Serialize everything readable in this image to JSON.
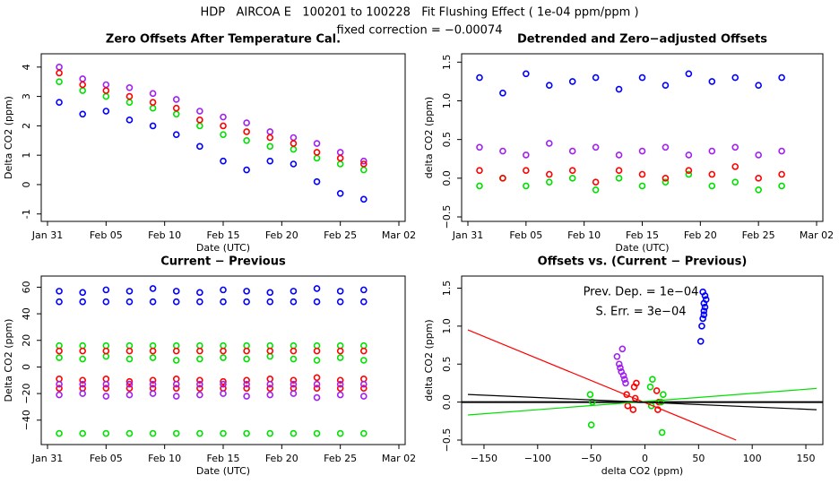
{
  "title": "HDP   AIRCOA E   100201 to 100228   Fit Flushing Effect ( 1e-04 ppm/ppm )",
  "subtitle": "fixed correction = −0.00074",
  "chart_data": [
    {
      "type": "date-scatter",
      "title": "Zero Offsets After Temperature Cal.",
      "xlabel": "Date (UTC)",
      "ylabel": "Delta CO2 (ppm)",
      "x": [
        "Feb 01",
        "Feb 03",
        "Feb 05",
        "Feb 07",
        "Feb 09",
        "Feb 11",
        "Feb 13",
        "Feb 15",
        "Feb 17",
        "Feb 19",
        "Feb 21",
        "Feb 23",
        "Feb 25",
        "Feb 27"
      ],
      "xlim": [
        "Jan 31",
        "Mar 02"
      ],
      "xticks": [
        "Jan 31",
        "Feb 05",
        "Feb 10",
        "Feb 15",
        "Feb 20",
        "Feb 25",
        "Mar 02"
      ],
      "ylim": [
        -1.1,
        4.3
      ],
      "yticks": [
        -1,
        0,
        1,
        2,
        3,
        4
      ],
      "series": [
        {
          "color": "#a020f0",
          "values": [
            4.0,
            3.6,
            3.4,
            3.3,
            3.1,
            2.9,
            2.5,
            2.3,
            2.1,
            1.8,
            1.6,
            1.4,
            1.1,
            0.8
          ]
        },
        {
          "color": "#00e000",
          "values": [
            3.5,
            3.2,
            3.0,
            2.8,
            2.6,
            2.4,
            2.0,
            1.7,
            1.5,
            1.3,
            1.2,
            0.9,
            0.7,
            0.5
          ]
        },
        {
          "color": "#ff0000",
          "values": [
            3.8,
            3.4,
            3.2,
            3.0,
            2.8,
            2.6,
            2.2,
            2.0,
            1.8,
            1.6,
            1.4,
            1.1,
            0.9,
            0.7
          ]
        },
        {
          "color": "#0000ff",
          "values": [
            2.8,
            2.4,
            2.5,
            2.2,
            2.0,
            1.7,
            1.3,
            0.8,
            0.5,
            0.8,
            0.7,
            0.1,
            -0.3,
            -0.5
          ]
        }
      ]
    },
    {
      "type": "date-scatter",
      "title": "Detrended and Zero−adjusted Offsets",
      "xlabel": "Date (UTC)",
      "ylabel": "delta CO2 (ppm)",
      "x": [
        "Feb 01",
        "Feb 03",
        "Feb 05",
        "Feb 07",
        "Feb 09",
        "Feb 11",
        "Feb 13",
        "Feb 15",
        "Feb 17",
        "Feb 19",
        "Feb 21",
        "Feb 23",
        "Feb 25",
        "Feb 27"
      ],
      "xlim": [
        "Jan 31",
        "Mar 02"
      ],
      "xticks": [
        "Jan 31",
        "Feb 05",
        "Feb 10",
        "Feb 15",
        "Feb 20",
        "Feb 25",
        "Mar 02"
      ],
      "ylim": [
        -0.5,
        1.55
      ],
      "yticks": [
        {
          "value": -0.5,
          "label": "−0.5"
        },
        {
          "value": 0,
          "label": "0.0"
        },
        0.5,
        {
          "value": 1,
          "label": "1.0"
        },
        1.5
      ],
      "series": [
        {
          "color": "#0000ff",
          "values": [
            1.3,
            1.1,
            1.35,
            1.2,
            1.25,
            1.3,
            1.15,
            1.3,
            1.2,
            1.35,
            1.25,
            1.3,
            1.2,
            1.3
          ]
        },
        {
          "color": "#a020f0",
          "values": [
            0.4,
            0.35,
            0.3,
            0.45,
            0.35,
            0.4,
            0.3,
            0.35,
            0.4,
            0.3,
            0.35,
            0.4,
            0.3,
            0.35
          ]
        },
        {
          "color": "#00e000",
          "values": [
            -0.1,
            0.0,
            -0.1,
            -0.05,
            0.0,
            -0.15,
            0.0,
            -0.1,
            -0.05,
            0.05,
            -0.1,
            -0.05,
            -0.15,
            -0.1
          ]
        },
        {
          "color": "#ff0000",
          "values": [
            0.1,
            0.0,
            0.1,
            0.05,
            0.1,
            -0.05,
            0.1,
            0.05,
            0.0,
            0.1,
            0.05,
            0.15,
            0.0,
            0.05
          ]
        }
      ]
    },
    {
      "type": "date-scatter",
      "title": "Current − Previous",
      "xlabel": "Date (UTC)",
      "ylabel": "Delta CO2 (ppm)",
      "x": [
        "Feb 01",
        "Feb 03",
        "Feb 05",
        "Feb 07",
        "Feb 09",
        "Feb 11",
        "Feb 13",
        "Feb 15",
        "Feb 17",
        "Feb 19",
        "Feb 21",
        "Feb 23",
        "Feb 25",
        "Feb 27"
      ],
      "xlim": [
        "Jan 31",
        "Mar 02"
      ],
      "xticks": [
        "Jan 31",
        "Feb 05",
        "Feb 10",
        "Feb 15",
        "Feb 20",
        "Feb 25",
        "Mar 02"
      ],
      "ylim": [
        -55,
        65
      ],
      "yticks": [
        {
          "value": -40,
          "label": "−40"
        },
        {
          "value": -20,
          "label": "−20"
        },
        0,
        20,
        40,
        60
      ],
      "series": [
        {
          "color": "#0000ff",
          "values": [
            57,
            56,
            58,
            57,
            59,
            57,
            56,
            58,
            57,
            56,
            57,
            59,
            57,
            58
          ]
        },
        {
          "color": "#0000ff",
          "values": [
            49,
            49,
            49,
            49,
            49,
            49,
            49,
            49,
            49,
            49,
            49,
            49,
            49,
            49
          ]
        },
        {
          "color": "#00e000",
          "values": [
            16,
            16,
            16,
            16,
            16,
            16,
            16,
            16,
            16,
            16,
            16,
            16,
            16,
            16
          ]
        },
        {
          "color": "#00e000",
          "values": [
            7,
            6,
            8,
            6,
            7,
            5,
            6,
            7,
            6,
            8,
            6,
            5,
            7,
            5
          ]
        },
        {
          "color": "#ff0000",
          "values": [
            12,
            12,
            12,
            12,
            12,
            12,
            12,
            12,
            12,
            12,
            12,
            12,
            12,
            12
          ]
        },
        {
          "color": "#ff0000",
          "values": [
            -9,
            -10,
            -9,
            -11,
            -10,
            -9,
            -10,
            -11,
            -10,
            -9,
            -10,
            -8,
            -10,
            -9
          ]
        },
        {
          "color": "#ff0000",
          "values": [
            -16,
            -16,
            -16,
            -16,
            -16,
            -16,
            -16,
            -16,
            -16,
            -16,
            -16,
            -16,
            -16,
            -16
          ]
        },
        {
          "color": "#a020f0",
          "values": [
            -13,
            -13,
            -13,
            -13,
            -13,
            -13,
            -13,
            -13,
            -13,
            -13,
            -13,
            -13,
            -13,
            -13
          ]
        },
        {
          "color": "#a020f0",
          "values": [
            -21,
            -20,
            -22,
            -21,
            -20,
            -22,
            -21,
            -20,
            -22,
            -21,
            -20,
            -23,
            -21,
            -22
          ]
        },
        {
          "color": "#00e000",
          "values": [
            -50,
            -50,
            -50,
            -50,
            -50,
            -50,
            -50,
            -50,
            -50,
            -50,
            -50,
            -50,
            -50,
            -50
          ]
        }
      ]
    },
    {
      "type": "scatter",
      "title": "Offsets vs. (Current − Previous)",
      "xlabel": "delta CO2 (ppm)",
      "ylabel": "delta CO2 (ppm)",
      "xlim": [
        -165,
        160
      ],
      "xticks": [
        {
          "value": -150,
          "label": "−150"
        },
        {
          "value": -100,
          "label": "−100"
        },
        {
          "value": -50,
          "label": "−50"
        },
        0,
        50,
        100,
        150
      ],
      "ylim": [
        -0.5,
        1.6
      ],
      "yticks": [
        {
          "value": -0.5,
          "label": "−0.5"
        },
        {
          "value": 0,
          "label": "0.0"
        },
        0.5,
        {
          "value": 1,
          "label": "1.0"
        },
        1.5
      ],
      "annotations": [
        "Prev. Dep. = 1e−04",
        "S. Err. = 3e−04"
      ],
      "hline": 0,
      "series": [
        {
          "color": "#0000ff",
          "x": [
            52,
            53,
            54,
            55,
            55,
            56,
            57,
            56,
            54,
            55
          ],
          "values": [
            0.8,
            1.0,
            1.1,
            1.2,
            1.3,
            1.4,
            1.35,
            1.25,
            1.45,
            1.15
          ]
        },
        {
          "color": "#a020f0",
          "x": [
            -26,
            -24,
            -22,
            -20,
            -19,
            -18,
            -21,
            -23
          ],
          "values": [
            0.6,
            0.5,
            0.4,
            0.35,
            0.3,
            0.25,
            0.7,
            0.45
          ]
        },
        {
          "color": "#ff0000",
          "x": [
            -17,
            -16,
            -10,
            -9,
            -8,
            12,
            13,
            11,
            -11
          ],
          "values": [
            0.1,
            -0.05,
            0.2,
            0.05,
            0.25,
            -0.1,
            0.0,
            0.15,
            -0.1
          ]
        },
        {
          "color": "#00e000",
          "x": [
            -50,
            -49,
            -51,
            5,
            6,
            7,
            16,
            15,
            17
          ],
          "values": [
            -0.3,
            0.0,
            0.1,
            0.2,
            -0.05,
            0.3,
            -0.4,
            0.0,
            0.1
          ]
        }
      ],
      "lines": [
        {
          "color": "#ff0000",
          "x": [
            -165,
            85
          ],
          "y": [
            0.95,
            -0.5
          ]
        },
        {
          "color": "#00e000",
          "x": [
            -165,
            160
          ],
          "y": [
            -0.17,
            0.18
          ]
        },
        {
          "color": "#000000",
          "x": [
            -165,
            160
          ],
          "y": [
            0.1,
            -0.1
          ]
        }
      ]
    }
  ]
}
